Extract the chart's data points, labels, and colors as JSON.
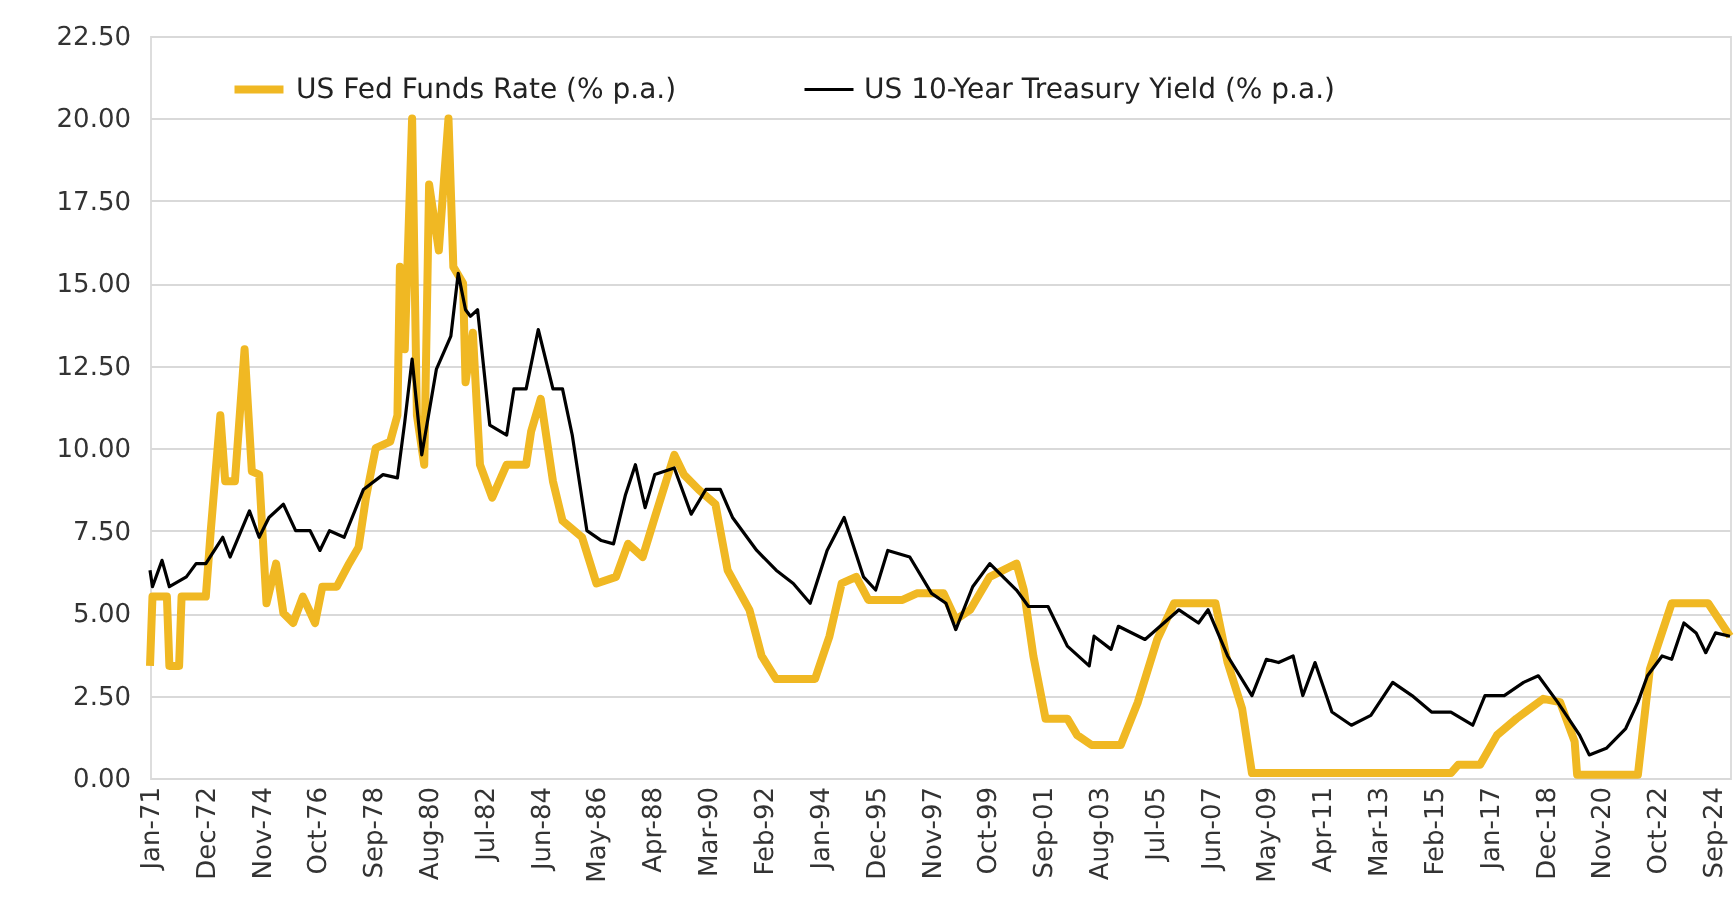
{
  "chart_data": {
    "type": "line",
    "xlim": [
      "1971-01",
      "2025-04"
    ],
    "xticks": [
      {
        "value": "1971-01",
        "label": "Jan-71"
      },
      {
        "value": "1972-12",
        "label": "Dec-72"
      },
      {
        "value": "1974-11",
        "label": "Nov-74"
      },
      {
        "value": "1976-10",
        "label": "Oct-76"
      },
      {
        "value": "1978-09",
        "label": "Sep-78"
      },
      {
        "value": "1980-08",
        "label": "Aug-80"
      },
      {
        "value": "1982-07",
        "label": "Jul-82"
      },
      {
        "value": "1984-06",
        "label": "Jun-84"
      },
      {
        "value": "1986-05",
        "label": "May-86"
      },
      {
        "value": "1988-04",
        "label": "Apr-88"
      },
      {
        "value": "1990-03",
        "label": "Mar-90"
      },
      {
        "value": "1992-02",
        "label": "Feb-92"
      },
      {
        "value": "1994-01",
        "label": "Jan-94"
      },
      {
        "value": "1995-12",
        "label": "Dec-95"
      },
      {
        "value": "1997-11",
        "label": "Nov-97"
      },
      {
        "value": "1999-10",
        "label": "Oct-99"
      },
      {
        "value": "2001-09",
        "label": "Sep-01"
      },
      {
        "value": "2003-08",
        "label": "Aug-03"
      },
      {
        "value": "2005-07",
        "label": "Jul-05"
      },
      {
        "value": "2007-06",
        "label": "Jun-07"
      },
      {
        "value": "2009-05",
        "label": "May-09"
      },
      {
        "value": "2011-04",
        "label": "Apr-11"
      },
      {
        "value": "2013-03",
        "label": "Mar-13"
      },
      {
        "value": "2015-02",
        "label": "Feb-15"
      },
      {
        "value": "2017-01",
        "label": "Jan-17"
      },
      {
        "value": "2018-12",
        "label": "Dec-18"
      },
      {
        "value": "2020-11",
        "label": "Nov-20"
      },
      {
        "value": "2022-10",
        "label": "Oct-22"
      },
      {
        "value": "2024-09",
        "label": "Sep-24"
      }
    ],
    "ylim": [
      0,
      22.5
    ],
    "yticks": [
      {
        "value": 0,
        "label": "0.00"
      },
      {
        "value": 2.5,
        "label": "2.50"
      },
      {
        "value": 5,
        "label": "5.00"
      },
      {
        "value": 7.5,
        "label": "7.50"
      },
      {
        "value": 10,
        "label": "10.00"
      },
      {
        "value": 12.5,
        "label": "12.50"
      },
      {
        "value": 15,
        "label": "15.00"
      },
      {
        "value": 17.5,
        "label": "17.50"
      },
      {
        "value": 20,
        "label": "20.00"
      },
      {
        "value": 22.5,
        "label": "22.50"
      }
    ],
    "grid": "y",
    "legend": "top",
    "marker": "none",
    "line_style": "solid",
    "series": [
      {
        "name": "US Fed Funds Rate (% p.a.)",
        "color": "#f0b823",
        "x": [
          "1971-01",
          "1971-02",
          "1971-08",
          "1971-09",
          "1972-01",
          "1972-02",
          "1972-12",
          "1973-02",
          "1973-06",
          "1973-08",
          "1973-12",
          "1974-04",
          "1974-07",
          "1974-10",
          "1975-01",
          "1975-05",
          "1975-08",
          "1975-12",
          "1976-04",
          "1976-09",
          "1976-12",
          "1977-06",
          "1977-11",
          "1978-03",
          "1978-06",
          "1978-10",
          "1979-04",
          "1979-07",
          "1979-08",
          "1979-10",
          "1980-01",
          "1980-03",
          "1980-06",
          "1980-08",
          "1980-12",
          "1981-04",
          "1981-06",
          "1981-10",
          "1981-11",
          "1982-02",
          "1982-05",
          "1982-10",
          "1983-04",
          "1983-12",
          "1984-02",
          "1984-06",
          "1984-11",
          "1985-03",
          "1985-11",
          "1986-05",
          "1987-01",
          "1987-06",
          "1987-12",
          "1988-05",
          "1989-01",
          "1989-05",
          "1989-11",
          "1990-06",
          "1990-11",
          "1991-08",
          "1992-01",
          "1992-07",
          "1993-11",
          "1994-05",
          "1994-10",
          "1995-04",
          "1995-09",
          "1996-11",
          "1997-05",
          "1998-04",
          "1998-09",
          "1999-03",
          "1999-11",
          "2000-10",
          "2001-01",
          "2001-05",
          "2001-10",
          "2002-07",
          "2002-11",
          "2003-05",
          "2004-05",
          "2004-12",
          "2005-08",
          "2006-03",
          "2007-08",
          "2008-01",
          "2008-07",
          "2008-11",
          "2015-09",
          "2015-12",
          "2016-09",
          "2017-04",
          "2017-12",
          "2018-11",
          "2019-06",
          "2019-12",
          "2020-01",
          "2022-02",
          "2022-07",
          "2023-04",
          "2024-07",
          "2025-04"
        ],
        "values": [
          3.4,
          5.5,
          5.5,
          3.4,
          3.4,
          5.5,
          5.5,
          7.5,
          11,
          9,
          9,
          13,
          9.3,
          9.2,
          5.3,
          6.5,
          5,
          4.7,
          5.5,
          4.7,
          5.8,
          5.8,
          6.5,
          7,
          8.5,
          10,
          10.2,
          11,
          15.5,
          13,
          20,
          11,
          9.5,
          18,
          16,
          20,
          15.5,
          15,
          12,
          13.5,
          9.5,
          8.5,
          9.5,
          9.5,
          10.5,
          11.5,
          9,
          7.8,
          7.3,
          5.9,
          6.1,
          7.1,
          6.7,
          7.9,
          9.8,
          9.2,
          8.75,
          8.3,
          6.3,
          5.1,
          3.7,
          3.0,
          3.0,
          4.3,
          5.9,
          6.1,
          5.4,
          5.4,
          5.6,
          5.6,
          4.8,
          5.1,
          6.1,
          6.5,
          5.7,
          3.7,
          1.8,
          1.8,
          1.3,
          1.0,
          1.0,
          2.3,
          4.2,
          5.3,
          5.3,
          3.5,
          2.1,
          0.15,
          0.15,
          0.4,
          0.4,
          1.3,
          1.8,
          2.4,
          2.3,
          1.1,
          0.1,
          0.1,
          3.3,
          5.3,
          5.3,
          4.3
        ]
      },
      {
        "name": "US 10-Year Treasury Yield (% p.a.)",
        "color": "#000000",
        "x": [
          "1971-01",
          "1971-02",
          "1971-06",
          "1971-09",
          "1972-04",
          "1972-08",
          "1972-12",
          "1973-07",
          "1973-10",
          "1974-06",
          "1974-10",
          "1975-02",
          "1975-08",
          "1976-01",
          "1976-07",
          "1976-11",
          "1977-03",
          "1977-09",
          "1978-05",
          "1979-01",
          "1979-07",
          "1979-10",
          "1980-01",
          "1980-05",
          "1980-11",
          "1981-05",
          "1981-08",
          "1981-11",
          "1982-01",
          "1982-04",
          "1982-09",
          "1983-04",
          "1983-07",
          "1983-12",
          "1984-05",
          "1984-11",
          "1985-03",
          "1985-07",
          "1986-01",
          "1986-07",
          "1986-12",
          "1987-05",
          "1987-09",
          "1988-01",
          "1988-05",
          "1989-01",
          "1989-08",
          "1990-02",
          "1990-08",
          "1991-01",
          "1991-11",
          "1992-07",
          "1993-02",
          "1993-09",
          "1994-04",
          "1994-11",
          "1995-07",
          "1995-12",
          "1996-05",
          "1997-02",
          "1997-11",
          "1998-05",
          "1998-09",
          "1999-04",
          "1999-11",
          "2000-10",
          "2001-03",
          "2001-11",
          "2002-07",
          "2003-04",
          "2003-06",
          "2004-01",
          "2004-04",
          "2005-03",
          "2006-05",
          "2007-01",
          "2007-05",
          "2008-01",
          "2008-11",
          "2009-05",
          "2009-10",
          "2010-04",
          "2010-08",
          "2011-01",
          "2011-08",
          "2012-04",
          "2012-12",
          "2013-09",
          "2014-05",
          "2015-01",
          "2015-09",
          "2016-06",
          "2016-11",
          "2017-07",
          "2018-03",
          "2018-09",
          "2019-05",
          "2020-02",
          "2020-06",
          "2021-01",
          "2021-09",
          "2022-02",
          "2022-06",
          "2022-12",
          "2023-04",
          "2023-09",
          "2024-02",
          "2024-06",
          "2024-10",
          "2025-04"
        ],
        "values": [
          6.3,
          5.8,
          6.6,
          5.8,
          6.1,
          6.5,
          6.5,
          7.3,
          6.7,
          8.1,
          7.3,
          7.9,
          8.3,
          7.5,
          7.5,
          6.9,
          7.5,
          7.3,
          8.75,
          9.2,
          9.1,
          10.8,
          12.7,
          9.8,
          12.4,
          13.4,
          15.3,
          14.2,
          14,
          14.2,
          10.7,
          10.4,
          11.8,
          11.8,
          13.6,
          11.8,
          11.8,
          10.4,
          7.5,
          7.2,
          7.1,
          8.6,
          9.5,
          8.2,
          9.2,
          9.4,
          8.0,
          8.75,
          8.75,
          7.9,
          6.9,
          6.3,
          5.9,
          5.3,
          6.9,
          7.9,
          6.1,
          5.7,
          6.9,
          6.7,
          5.6,
          5.3,
          4.5,
          5.8,
          6.5,
          5.7,
          5.2,
          5.2,
          4.0,
          3.4,
          4.3,
          3.9,
          4.6,
          4.2,
          5.1,
          4.7,
          5.1,
          3.7,
          2.5,
          3.6,
          3.5,
          3.7,
          2.5,
          3.5,
          2.0,
          1.6,
          1.9,
          2.9,
          2.5,
          2.0,
          2.0,
          1.6,
          2.5,
          2.5,
          2.9,
          3.1,
          2.3,
          1.3,
          0.7,
          0.9,
          1.5,
          2.3,
          3.1,
          3.7,
          3.6,
          4.7,
          4.4,
          3.8,
          4.4,
          4.3
        ]
      }
    ]
  }
}
